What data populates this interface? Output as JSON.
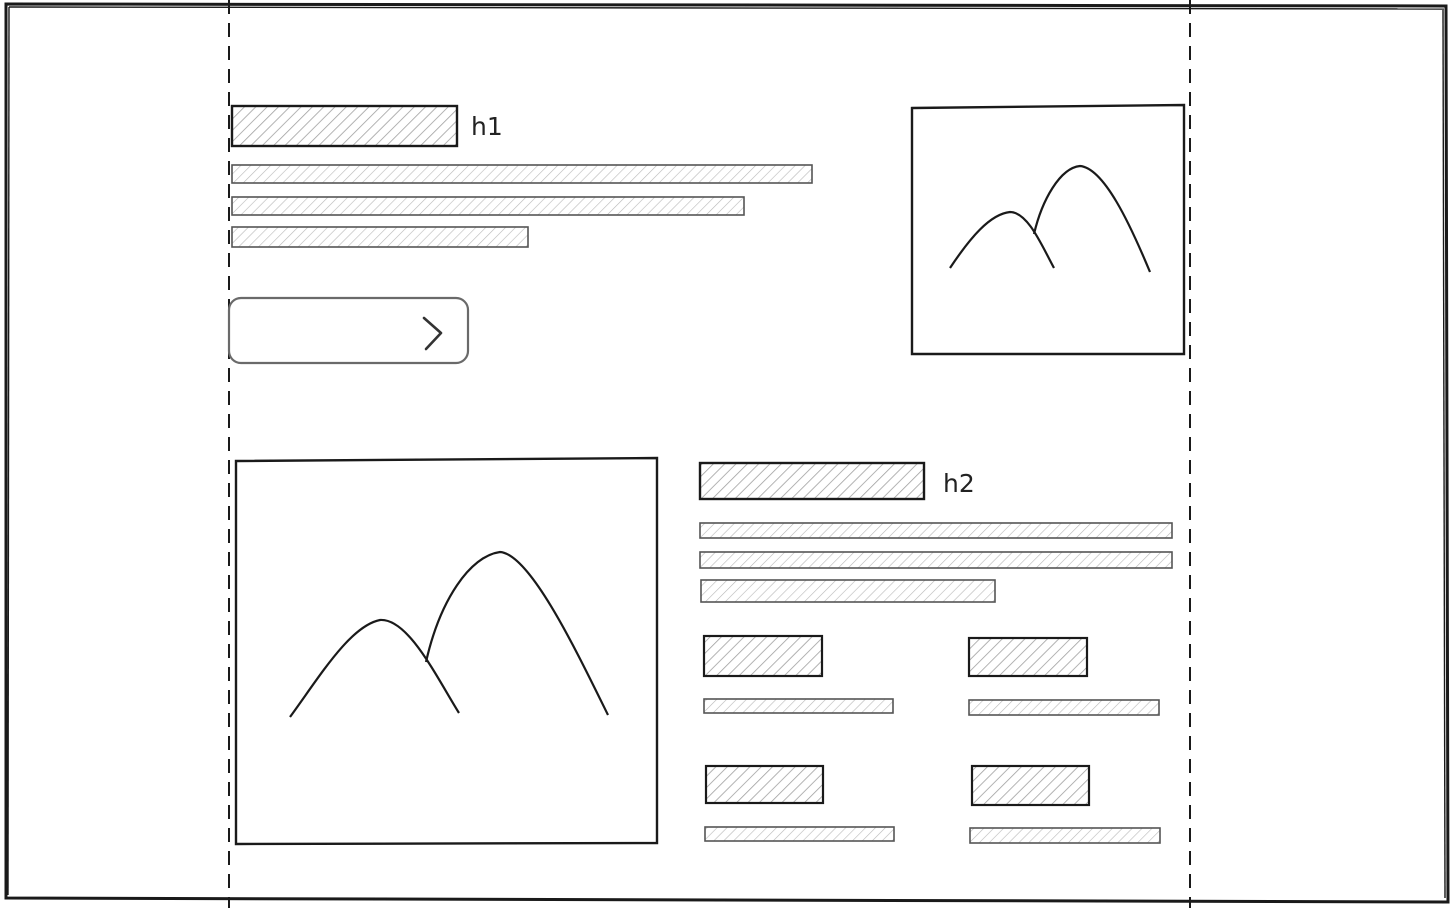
{
  "wireframe": {
    "hero": {
      "heading_tag": "h1",
      "text_lines": 3,
      "button_icon": "chevron-right-icon",
      "image_icon": "mountain-image-icon"
    },
    "feature": {
      "heading_tag": "h2",
      "text_lines": 3,
      "image_icon": "mountain-image-icon",
      "items": [
        {
          "title_block": "item-title",
          "text_lines": 1
        },
        {
          "title_block": "item-title",
          "text_lines": 1
        },
        {
          "title_block": "item-title",
          "text_lines": 1
        },
        {
          "title_block": "item-title",
          "text_lines": 1
        }
      ]
    }
  },
  "colors": {
    "stroke": "#1a1a1a",
    "hatch": "#9a9a9a",
    "text_line_stroke": "#555555"
  }
}
